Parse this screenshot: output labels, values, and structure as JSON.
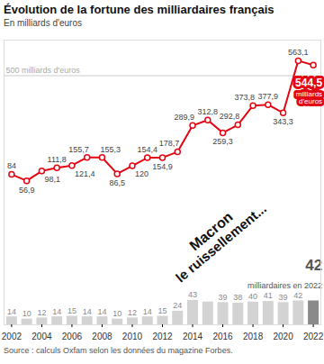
{
  "chart_data": {
    "type": "line",
    "title": "Évolution de la fortune des milliardaires français",
    "subtitle": "En milliards d'euros",
    "caption": "Source : calculs Oxfam selon les données du magazine Forbes.",
    "annotations": [
      "milliards d'euros",
      "milliardaires en 2022",
      "Macron",
      "le ruissellement..."
    ],
    "x": [
      2002,
      2003,
      2004,
      2005,
      2006,
      2007,
      2008,
      2009,
      2010,
      2011,
      2012,
      2013,
      2014,
      2015,
      2016,
      2017,
      2018,
      2019,
      2020,
      2021,
      2022
    ],
    "xlim": [
      2001.5,
      2022.5
    ],
    "xticks": [
      2002,
      2004,
      2006,
      2008,
      2010,
      2012,
      2014,
      2016,
      2018,
      2020,
      2022
    ],
    "ylim": [
      -550,
      650
    ],
    "yticks": [
      {
        "value": 500,
        "label": "500 milliards d'euros"
      }
    ],
    "y2lim": [
      0,
      500
    ],
    "y2ticks": [],
    "grid": true,
    "data_labels": true,
    "series": [
      {
        "type": "line",
        "color": "#e30613",
        "marker": "circle",
        "values": [
          84,
          56.9,
          98.1,
          111.8,
          121.4,
          155.7,
          155.3,
          86.5,
          120,
          154.4,
          154.9,
          178.7,
          289.9,
          312.8,
          259.3,
          292.8,
          373.8,
          377.9,
          343.3,
          563.1,
          544.5
        ],
        "value_labels": [
          "84",
          "56,9",
          "98,1",
          "111,8",
          "121,4",
          "155,7",
          "155,3",
          "86,5",
          "120",
          "154,4",
          "154,9",
          "178,7",
          "289,9",
          "312,8",
          "259,3",
          "292,8",
          "373,8",
          "377,9",
          "343,3",
          "563,1",
          "544,5"
        ]
      },
      {
        "type": "bar",
        "axis": "y2",
        "color": "#d3d3d3",
        "colors": [
          "#d3d3d3",
          "#d3d3d3",
          "#d3d3d3",
          "#d3d3d3",
          "#d3d3d3",
          "#d3d3d3",
          "#d3d3d3",
          "#d3d3d3",
          "#d3d3d3",
          "#d3d3d3",
          "#d3d3d3",
          "#d3d3d3",
          "#d3d3d3",
          "#d3d3d3",
          "#d3d3d3",
          "#d3d3d3",
          "#d3d3d3",
          "#d3d3d3",
          "#d3d3d3",
          "#d3d3d3",
          "#8a8a8a"
        ],
        "values": [
          14,
          10,
          12,
          14,
          15,
          14,
          14,
          10,
          12,
          14,
          15,
          24,
          43,
          40,
          39,
          38,
          40,
          41,
          39,
          42,
          42
        ],
        "value_labels": [
          "14",
          "10",
          "12",
          "14",
          "15",
          "14",
          "14",
          "10",
          "12",
          "14",
          "15",
          "24",
          "43",
          null,
          "39",
          "38",
          "40",
          "41",
          "39",
          "42",
          "42"
        ]
      }
    ]
  }
}
